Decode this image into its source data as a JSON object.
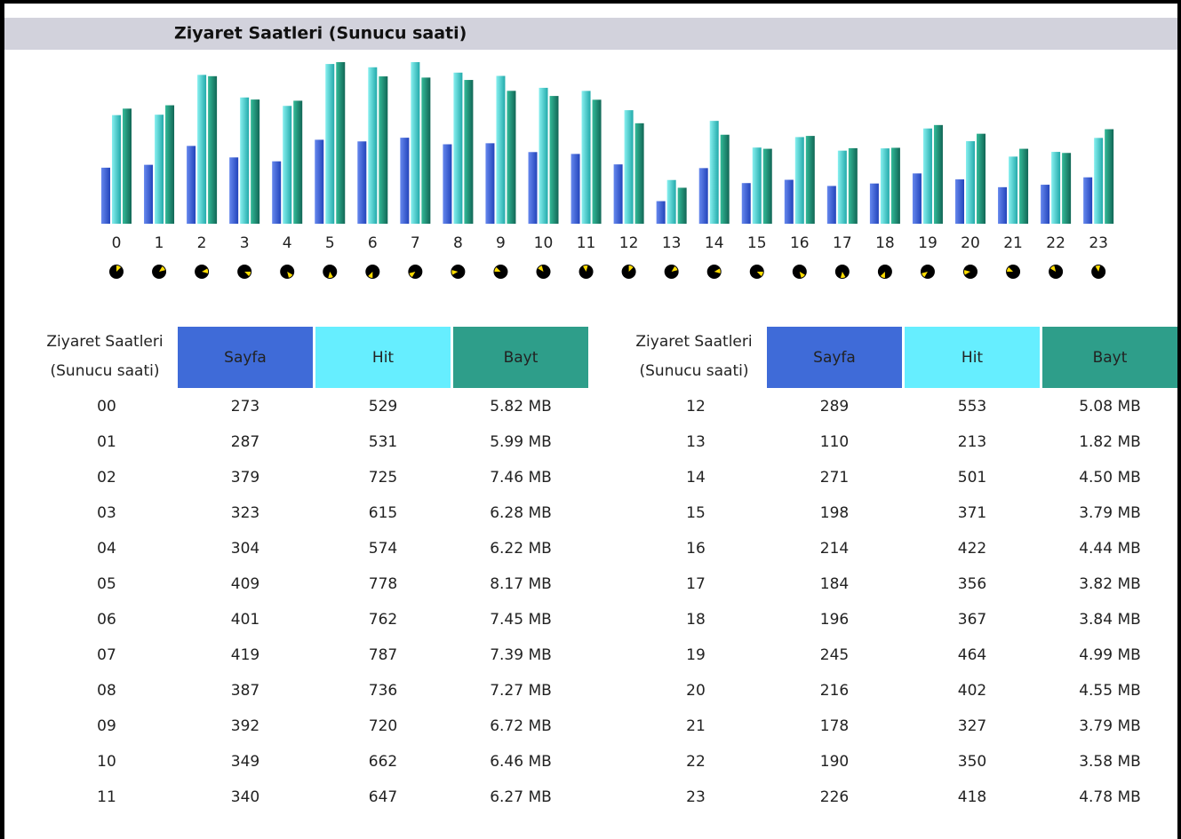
{
  "title": "Ziyaret Saatleri (Sunucu saati)",
  "chart_labels": [
    "0",
    "1",
    "2",
    "3",
    "4",
    "5",
    "6",
    "7",
    "8",
    "9",
    "10",
    "11",
    "12",
    "13",
    "14",
    "15",
    "16",
    "17",
    "18",
    "19",
    "20",
    "21",
    "22",
    "23"
  ],
  "tables": [
    {
      "header_label": [
        "Ziyaret Saatleri",
        "(Sunucu saati)"
      ],
      "headers": [
        "Sayfa",
        "Hit",
        "Bayt"
      ],
      "rows": [
        [
          "00",
          273,
          529,
          {
            "value": 5.82,
            "label": "5.82 MB"
          }
        ],
        [
          "01",
          287,
          531,
          {
            "value": 5.99,
            "label": "5.99 MB"
          }
        ],
        [
          "02",
          379,
          725,
          {
            "value": 7.46,
            "label": "7.46 MB"
          }
        ],
        [
          "03",
          323,
          615,
          {
            "value": 6.28,
            "label": "6.28 MB"
          }
        ],
        [
          "04",
          304,
          574,
          {
            "value": 6.22,
            "label": "6.22 MB"
          }
        ],
        [
          "05",
          409,
          778,
          {
            "value": 8.17,
            "label": "8.17 MB"
          }
        ],
        [
          "06",
          401,
          762,
          {
            "value": 7.45,
            "label": "7.45 MB"
          }
        ],
        [
          "07",
          419,
          787,
          {
            "value": 7.39,
            "label": "7.39 MB"
          }
        ],
        [
          "08",
          387,
          736,
          {
            "value": 7.27,
            "label": "7.27 MB"
          }
        ],
        [
          "09",
          392,
          720,
          {
            "value": 6.72,
            "label": "6.72 MB"
          }
        ],
        [
          "10",
          349,
          662,
          {
            "value": 6.46,
            "label": "6.46 MB"
          }
        ],
        [
          "11",
          340,
          647,
          {
            "value": 6.27,
            "label": "6.27 MB"
          }
        ]
      ]
    },
    {
      "header_label": [
        "Ziyaret Saatleri",
        "(Sunucu saati)"
      ],
      "headers": [
        "Sayfa",
        "Hit",
        "Bayt"
      ],
      "rows": [
        [
          "12",
          289,
          553,
          {
            "value": 5.08,
            "label": "5.08 MB"
          }
        ],
        [
          "13",
          110,
          213,
          {
            "value": 1.82,
            "label": "1.82 MB"
          }
        ],
        [
          "14",
          271,
          501,
          {
            "value": 4.5,
            "label": "4.50 MB"
          }
        ],
        [
          "15",
          198,
          371,
          {
            "value": 3.79,
            "label": "3.79 MB"
          }
        ],
        [
          "16",
          214,
          422,
          {
            "value": 4.44,
            "label": "4.44 MB"
          }
        ],
        [
          "17",
          184,
          356,
          {
            "value": 3.82,
            "label": "3.82 MB"
          }
        ],
        [
          "18",
          196,
          367,
          {
            "value": 3.84,
            "label": "3.84 MB"
          }
        ],
        [
          "19",
          245,
          464,
          {
            "value": 4.99,
            "label": "4.99 MB"
          }
        ],
        [
          "20",
          216,
          402,
          {
            "value": 4.55,
            "label": "4.55 MB"
          }
        ],
        [
          "21",
          178,
          327,
          {
            "value": 3.79,
            "label": "3.79 MB"
          }
        ],
        [
          "22",
          190,
          350,
          {
            "value": 3.58,
            "label": "3.58 MB"
          }
        ],
        [
          "23",
          226,
          418,
          {
            "value": 4.78,
            "label": "4.78 MB"
          }
        ]
      ]
    }
  ]
}
